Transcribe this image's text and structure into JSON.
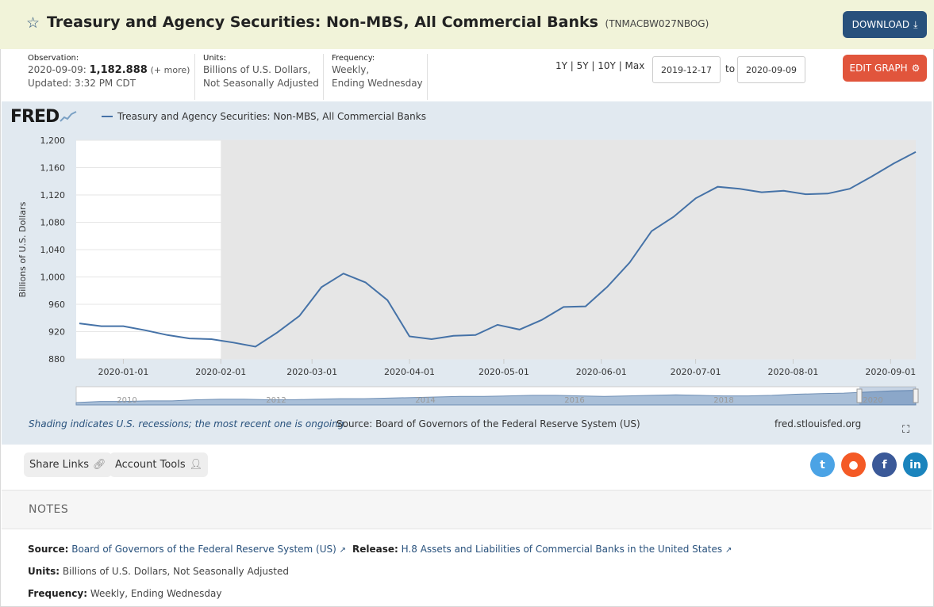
{
  "header": {
    "title": "Treasury and Agency Securities: Non-MBS, All Commercial Banks",
    "series_id": "(TNMACBW027NBOG)",
    "download_label": "DOWNLOAD"
  },
  "observation": {
    "label": "Observation:",
    "date": "2020-09-09:",
    "value": "1,182.888",
    "more": "(+ more)",
    "updated": "Updated: 3:32 PM CDT"
  },
  "units": {
    "label": "Units:",
    "line1": "Billions of U.S. Dollars,",
    "line2": "Not Seasonally Adjusted"
  },
  "frequency": {
    "label": "Frequency:",
    "line1": "Weekly,",
    "line2": "Ending Wednesday"
  },
  "range_buttons": "1Y | 5Y | 10Y | Max",
  "date_start": "2019-12-17",
  "date_to": "to",
  "date_end": "2020-09-09",
  "edit_label": "EDIT GRAPH",
  "logo": "FRED",
  "legend_label": "Treasury and Agency Securities: Non-MBS, All Commercial Banks",
  "footnote": "Shading indicates U.S. recessions; the most recent one is ongoing.",
  "source_line": "Source: Board of Governors of the Federal Reserve System (US)",
  "fred_url": "fred.stlouisfed.org",
  "share_label": "Share Links",
  "account_label": "Account Tools",
  "notes": {
    "title": "NOTES",
    "source_label": "Source:",
    "source_value": "Board of Governors of the Federal Reserve System (US)",
    "release_label": "Release:",
    "release_value": "H.8 Assets and Liabilities of Commercial Banks in the United States",
    "units_label": "Units:",
    "units_value": "Billions of U.S. Dollars, Not Seasonally Adjusted",
    "freq_label": "Frequency:",
    "freq_value": "Weekly, Ending Wednesday"
  },
  "colors": {
    "line": "#4572a7",
    "recession": "#e6e6e6",
    "accent": "#28517c",
    "edit": "#e1553c"
  },
  "chart_data": {
    "type": "line",
    "ylabel": "Billions of U.S. Dollars",
    "ylim": [
      880,
      1200
    ],
    "y_ticks": [
      1200,
      1160,
      1120,
      1080,
      1040,
      1000,
      960,
      920,
      880
    ],
    "x_ticks": [
      "2020-01-01",
      "2020-02-01",
      "2020-03-01",
      "2020-04-01",
      "2020-05-01",
      "2020-06-01",
      "2020-07-01",
      "2020-08-01",
      "2020-09-01"
    ],
    "recession_start": "2020-02-01",
    "series": [
      {
        "name": "Treasury and Agency Securities: Non-MBS, All Commercial Banks",
        "x": [
          "2019-12-18",
          "2019-12-25",
          "2020-01-01",
          "2020-01-08",
          "2020-01-15",
          "2020-01-22",
          "2020-01-29",
          "2020-02-05",
          "2020-02-12",
          "2020-02-19",
          "2020-02-26",
          "2020-03-04",
          "2020-03-11",
          "2020-03-18",
          "2020-03-25",
          "2020-04-01",
          "2020-04-08",
          "2020-04-15",
          "2020-04-22",
          "2020-04-29",
          "2020-05-06",
          "2020-05-13",
          "2020-05-20",
          "2020-05-27",
          "2020-06-03",
          "2020-06-10",
          "2020-06-17",
          "2020-06-24",
          "2020-07-01",
          "2020-07-08",
          "2020-07-15",
          "2020-07-22",
          "2020-07-29",
          "2020-08-05",
          "2020-08-12",
          "2020-08-19",
          "2020-08-26",
          "2020-09-02",
          "2020-09-09"
        ],
        "y": [
          932,
          928,
          928,
          922,
          915,
          910,
          909,
          904,
          898,
          919,
          943,
          985,
          1005,
          992,
          966,
          913,
          909,
          914,
          915,
          930,
          923,
          937,
          956,
          957,
          986,
          1021,
          1067,
          1088,
          1115,
          1132,
          1129,
          1124,
          1126,
          1121,
          1122,
          1129,
          1147,
          1166,
          1183
        ]
      }
    ],
    "navigator_ticks": [
      "2010",
      "2012",
      "2014",
      "2016",
      "2018",
      "2020"
    ]
  }
}
